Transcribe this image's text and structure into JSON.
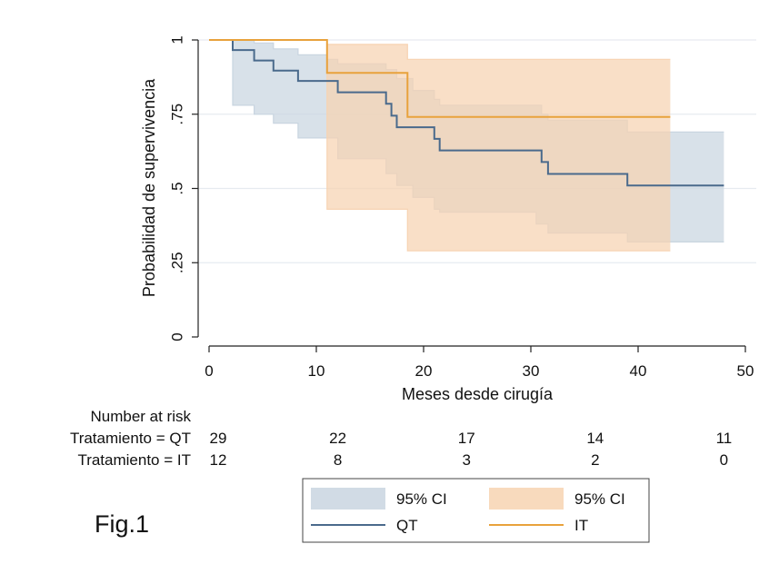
{
  "chart_data": {
    "type": "line",
    "subtype": "kaplan-meier survival curve with 95% confidence bands",
    "title": "",
    "xlabel": "Meses desde cirugía",
    "ylabel": "Probabilidad de supervivencia",
    "xlim": [
      0,
      50
    ],
    "ylim": [
      0,
      1
    ],
    "x_ticks": [
      0,
      10,
      20,
      30,
      40,
      50
    ],
    "x_tick_labels": [
      "0",
      "10",
      "20",
      "30",
      "40",
      "50"
    ],
    "y_ticks": [
      0,
      0.25,
      0.5,
      0.75,
      1
    ],
    "y_tick_labels": [
      "0",
      ".25",
      ".5",
      ".75",
      "1"
    ],
    "grid": "horizontal",
    "legend_position": "bottom",
    "series": [
      {
        "name": "QT",
        "color": "#4a6a8c",
        "band_color": "#c9d5e0",
        "steps": [
          [
            0,
            1.0
          ],
          [
            2.2,
            0.966
          ],
          [
            4.2,
            0.931
          ],
          [
            6.0,
            0.897
          ],
          [
            8.3,
            0.862
          ],
          [
            10.8,
            0.862
          ],
          [
            12.0,
            0.824
          ],
          [
            16.5,
            0.785
          ],
          [
            17.0,
            0.745
          ],
          [
            17.5,
            0.706
          ],
          [
            21.0,
            0.667
          ],
          [
            21.5,
            0.628
          ],
          [
            31.0,
            0.589
          ],
          [
            31.6,
            0.549
          ],
          [
            39.0,
            0.51
          ],
          [
            48.0,
            0.51
          ]
        ],
        "ci_upper": [
          [
            0,
            1.0
          ],
          [
            2.2,
            1.0
          ],
          [
            4.2,
            0.99
          ],
          [
            6.0,
            0.97
          ],
          [
            8.3,
            0.95
          ],
          [
            11.0,
            0.935
          ],
          [
            12.0,
            0.92
          ],
          [
            16.5,
            0.9
          ],
          [
            17.5,
            0.87
          ],
          [
            19.0,
            0.83
          ],
          [
            21.0,
            0.8
          ],
          [
            21.5,
            0.78
          ],
          [
            31.0,
            0.75
          ],
          [
            31.6,
            0.73
          ],
          [
            39.0,
            0.69
          ],
          [
            48.0,
            0.69
          ]
        ],
        "ci_lower": [
          [
            0,
            1.0
          ],
          [
            2.2,
            0.78
          ],
          [
            4.2,
            0.75
          ],
          [
            6.0,
            0.72
          ],
          [
            8.3,
            0.67
          ],
          [
            11.0,
            0.67
          ],
          [
            12.0,
            0.6
          ],
          [
            16.5,
            0.55
          ],
          [
            17.5,
            0.51
          ],
          [
            19.0,
            0.47
          ],
          [
            21.0,
            0.43
          ],
          [
            21.5,
            0.42
          ],
          [
            30.5,
            0.38
          ],
          [
            31.6,
            0.35
          ],
          [
            39.0,
            0.32
          ],
          [
            48.0,
            0.32
          ]
        ]
      },
      {
        "name": "IT",
        "color": "#e8a23c",
        "band_color": "#f7d3b2",
        "steps": [
          [
            0,
            1.0
          ],
          [
            11.0,
            0.889
          ],
          [
            18.5,
            0.741
          ],
          [
            43.0,
            0.741
          ]
        ],
        "ci_upper": [
          [
            0,
            1.0
          ],
          [
            11.0,
            0.985
          ],
          [
            18.5,
            0.935
          ],
          [
            43.0,
            0.935
          ]
        ],
        "ci_lower": [
          [
            0,
            1.0
          ],
          [
            11.0,
            0.43
          ],
          [
            18.5,
            0.29
          ],
          [
            43.0,
            0.29
          ]
        ]
      }
    ],
    "risk_table": {
      "header": "Number at risk",
      "rows": [
        {
          "label": "Tratamiento = QT",
          "values": [
            "29",
            "22",
            "17",
            "14",
            "11"
          ]
        },
        {
          "label": "Tratamiento = IT",
          "values": [
            "12",
            "8",
            "3",
            "2",
            "0"
          ]
        }
      ]
    },
    "legend": [
      {
        "label": "95% CI",
        "kind": "band",
        "series": "QT"
      },
      {
        "label": "95% CI",
        "kind": "band",
        "series": "IT"
      },
      {
        "label": "QT",
        "kind": "line",
        "series": "QT"
      },
      {
        "label": "IT",
        "kind": "line",
        "series": "IT"
      }
    ]
  },
  "figure_label": "Fig.1"
}
